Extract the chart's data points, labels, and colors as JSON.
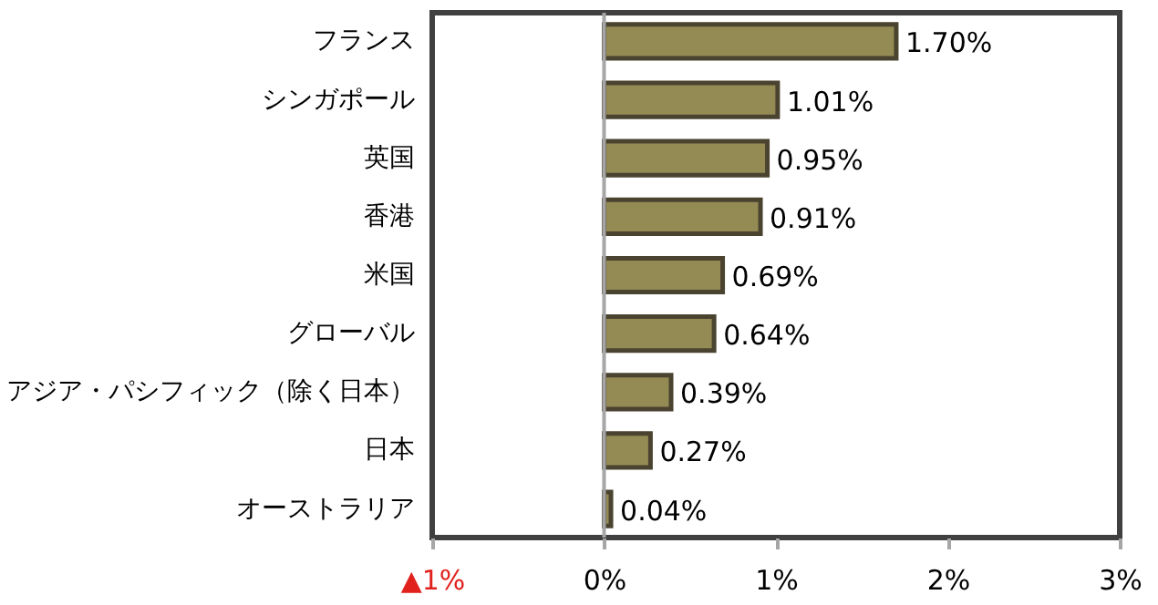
{
  "chart_data": {
    "type": "bar",
    "orientation": "horizontal",
    "categories": [
      "フランス",
      "シンガポール",
      "英国",
      "香港",
      "米国",
      "グローバル",
      "アジア・パシフィック（除く日本）",
      "日本",
      "オーストラリア"
    ],
    "values": [
      1.7,
      1.01,
      0.95,
      0.91,
      0.69,
      0.64,
      0.39,
      0.27,
      0.04
    ],
    "value_labels": [
      "1.70%",
      "1.01%",
      "0.95%",
      "0.91%",
      "0.69%",
      "0.64%",
      "0.39%",
      "0.27%",
      "0.04%"
    ],
    "color": "#948a54",
    "xlim": [
      -1,
      3
    ],
    "xticks": [
      {
        "value": -1,
        "label": "▲1%"
      },
      {
        "value": 0,
        "label": "0%"
      },
      {
        "value": 1,
        "label": "1%"
      },
      {
        "value": 2,
        "label": "2%"
      },
      {
        "value": 3,
        "label": "3%"
      }
    ],
    "ref_lines": [
      {
        "axis": "x",
        "value": 0,
        "color": "#a6a6a6"
      }
    ]
  }
}
